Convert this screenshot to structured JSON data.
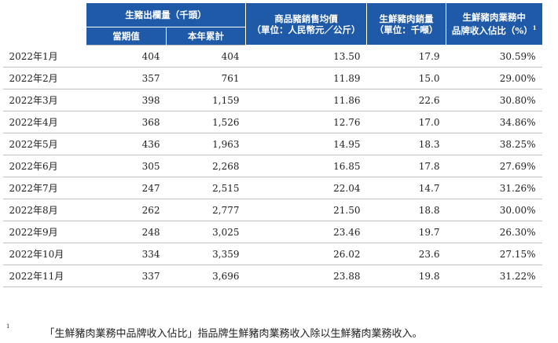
{
  "header": {
    "sales_volume": "生豬出欄量（千頭）",
    "period_value": "當期值",
    "ytd": "本年累計",
    "avg_price_l1": "商品豬銷售均價",
    "avg_price_l2": "（單位：人民幣元／公斤）",
    "pork_l1": "生鮮豬肉銷量",
    "pork_l2": "（單位：千噸）",
    "brand_l1": "生鮮豬肉業務中",
    "brand_l2": "品牌收入佔比（%）",
    "brand_sup": "1"
  },
  "rows": [
    {
      "month": "2022年1月",
      "period": "404",
      "ytd": "404",
      "price": "13.50",
      "pork": "17.9",
      "brand": "30.59%"
    },
    {
      "month": "2022年2月",
      "period": "357",
      "ytd": "761",
      "price": "11.89",
      "pork": "15.0",
      "brand": "29.00%"
    },
    {
      "month": "2022年3月",
      "period": "398",
      "ytd": "1,159",
      "price": "11.86",
      "pork": "22.6",
      "brand": "30.80%"
    },
    {
      "month": "2022年4月",
      "period": "368",
      "ytd": "1,526",
      "price": "12.76",
      "pork": "17.0",
      "brand": "34.86%"
    },
    {
      "month": "2022年5月",
      "period": "436",
      "ytd": "1,963",
      "price": "14.95",
      "pork": "18.3",
      "brand": "38.25%"
    },
    {
      "month": "2022年6月",
      "period": "305",
      "ytd": "2,268",
      "price": "16.85",
      "pork": "17.8",
      "brand": "27.69%"
    },
    {
      "month": "2022年7月",
      "period": "247",
      "ytd": "2,515",
      "price": "22.04",
      "pork": "14.7",
      "brand": "31.26%"
    },
    {
      "month": "2022年8月",
      "period": "262",
      "ytd": "2,777",
      "price": "21.50",
      "pork": "18.8",
      "brand": "30.00%"
    },
    {
      "month": "2022年9月",
      "period": "248",
      "ytd": "3,025",
      "price": "23.46",
      "pork": "19.7",
      "brand": "26.30%"
    },
    {
      "month": "2022年10月",
      "period": "334",
      "ytd": "3,359",
      "price": "26.02",
      "pork": "23.6",
      "brand": "27.15%"
    },
    {
      "month": "2022年11月",
      "period": "337",
      "ytd": "3,696",
      "price": "23.88",
      "pork": "19.8",
      "brand": "31.22%"
    }
  ],
  "footnote": {
    "marker": "1",
    "text": "「生鮮豬肉業務中品牌收入佔比」指品牌生鮮豬肉業務收入除以生鮮豬肉業務收入。"
  },
  "colors": {
    "header_bg": "#1f5aa8",
    "header_text": "#ffffff",
    "rule": "#bfbfbf"
  }
}
